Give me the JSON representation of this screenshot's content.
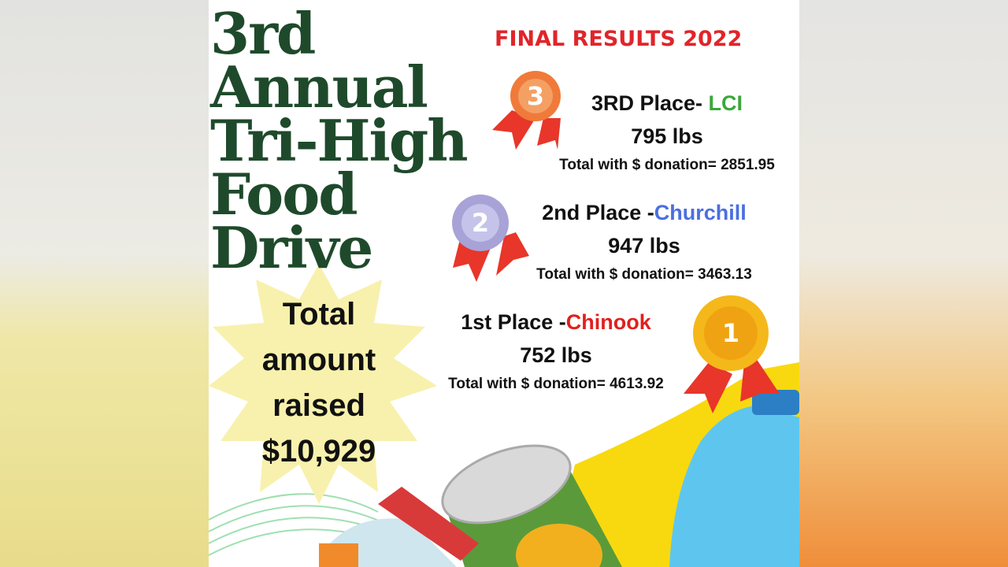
{
  "title_lines": [
    "3rd",
    "Annual",
    "Tri-High",
    "Food",
    "Drive"
  ],
  "subtitle": "FINAL RESULTS 2022",
  "places": [
    {
      "badge": "3",
      "label": "3RD Place- ",
      "school": "LCI",
      "weight": "795 lbs",
      "total": "Total with $ donation= 2851.95"
    },
    {
      "badge": "2",
      "label": "2nd Place -",
      "school": "Churchill",
      "weight": "947 lbs",
      "total": "Total with $ donation= 3463.13"
    },
    {
      "badge": "1",
      "label": "1st Place -",
      "school": "Chinook",
      "weight": "752 lbs",
      "total": "Total with $ donation= 4613.92"
    }
  ],
  "total_lines": [
    "Total",
    "amount",
    "raised",
    "$10,929"
  ]
}
